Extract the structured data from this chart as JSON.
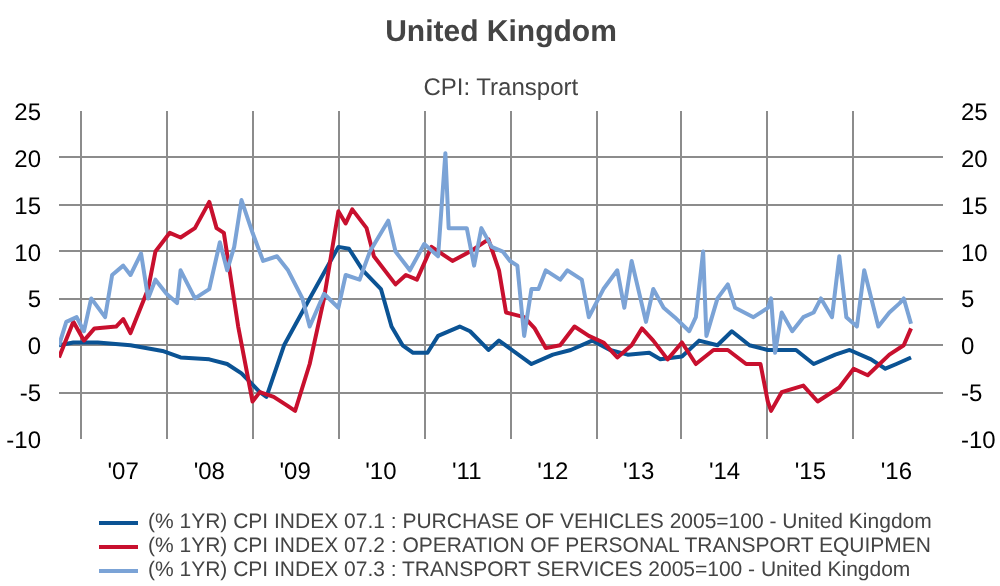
{
  "chart_data": {
    "type": "line",
    "title": "United Kingdom",
    "subtitle": "CPI: Transport",
    "xlim": [
      "2006-10-01",
      "2017-01-15"
    ],
    "xticks": [
      {
        "value": "2007-01-01",
        "label": null
      },
      {
        "value": "2008-01-01",
        "label": null
      },
      {
        "value": "2009-01-01",
        "label": null
      },
      {
        "value": "2010-01-01",
        "label": null
      },
      {
        "value": "2011-01-01",
        "label": null
      },
      {
        "value": "2012-01-01",
        "label": null
      },
      {
        "value": "2013-01-01",
        "label": null
      },
      {
        "value": "2014-01-01",
        "label": null
      },
      {
        "value": "2015-01-01",
        "label": null
      },
      {
        "value": "2016-01-01",
        "label": null
      },
      {
        "value": "2007-07-01",
        "label": "'07"
      },
      {
        "value": "2008-07-01",
        "label": "'08"
      },
      {
        "value": "2009-07-01",
        "label": "'09"
      },
      {
        "value": "2010-07-01",
        "label": "'10"
      },
      {
        "value": "2011-07-01",
        "label": "'11"
      },
      {
        "value": "2012-07-01",
        "label": "'12"
      },
      {
        "value": "2013-07-01",
        "label": "'13"
      },
      {
        "value": "2014-07-01",
        "label": "'14"
      },
      {
        "value": "2015-07-01",
        "label": "'15"
      },
      {
        "value": "2016-07-01",
        "label": "'16"
      }
    ],
    "ylim": [
      -10,
      25
    ],
    "yticks": [
      -10,
      -5,
      0,
      5,
      10,
      15,
      20,
      25
    ],
    "y2lim": [
      -10,
      25
    ],
    "y2ticks": [
      -10,
      -5,
      0,
      5,
      10,
      15,
      20,
      25
    ],
    "grid": true,
    "legend": "bottom",
    "series": [
      {
        "name": "(% 1YR) CPI INDEX 07.1 : PURCHASE OF VEHICLES 2005=100 - United Kingdom",
        "color": "#0b5394",
        "x": [
          "2006-10-01",
          "2006-12-01",
          "2007-03-15",
          "2007-08-01",
          "2007-12-15",
          "2008-03-01",
          "2008-07-01",
          "2008-09-15",
          "2008-11-15",
          "2009-02-01",
          "2009-03-01",
          "2009-05-15",
          "2009-09-01",
          "2010-01-01",
          "2010-02-15",
          "2010-04-15",
          "2010-07-01",
          "2010-08-15",
          "2010-10-01",
          "2010-11-15",
          "2011-01-15",
          "2011-03-01",
          "2011-06-01",
          "2011-07-15",
          "2011-10-01",
          "2011-11-15",
          "2012-04-01",
          "2012-07-01",
          "2012-09-15",
          "2012-12-15",
          "2013-03-01",
          "2013-05-15",
          "2013-08-15",
          "2013-10-01",
          "2014-01-01",
          "2014-03-15",
          "2014-06-01",
          "2014-08-01",
          "2014-10-15",
          "2015-01-01",
          "2015-05-01",
          "2015-07-15",
          "2015-10-15",
          "2015-12-15",
          "2016-03-15",
          "2016-05-15",
          "2016-07-01",
          "2016-09-01"
        ],
        "values": [
          0,
          0.3,
          0.3,
          0,
          -0.6,
          -1.3,
          -1.5,
          -2,
          -3,
          -5,
          -5.5,
          0,
          5,
          10.5,
          10.3,
          8,
          6,
          2,
          0,
          -0.8,
          -0.8,
          1,
          2,
          1.5,
          -0.5,
          0.5,
          -2,
          -1,
          -0.5,
          0.5,
          -0.5,
          -1,
          -0.8,
          -1.5,
          -1.2,
          0.5,
          0,
          1.5,
          0,
          -0.5,
          -0.5,
          -2,
          -1,
          -0.5,
          -1.5,
          -2.5,
          -2,
          -1.3
        ]
      },
      {
        "name": "(% 1YR) CPI INDEX 07.2 : OPERATION OF PERSONAL TRANSPORT EQUIPMEN",
        "color": "#c8102e",
        "x": [
          "2006-10-01",
          "2006-12-01",
          "2007-01-15",
          "2007-03-01",
          "2007-06-01",
          "2007-07-01",
          "2007-08-01",
          "2007-10-15",
          "2007-11-15",
          "2008-01-15",
          "2008-03-01",
          "2008-05-01",
          "2008-07-01",
          "2008-08-01",
          "2008-09-01",
          "2008-11-01",
          "2009-01-01",
          "2009-02-01",
          "2009-04-01",
          "2009-06-01",
          "2009-07-01",
          "2009-09-01",
          "2009-11-01",
          "2010-01-01",
          "2010-02-01",
          "2010-03-01",
          "2010-05-01",
          "2010-06-01",
          "2010-09-01",
          "2010-10-15",
          "2010-12-01",
          "2011-02-01",
          "2011-05-01",
          "2011-07-15",
          "2011-10-01",
          "2011-11-15",
          "2011-12-15",
          "2012-03-01",
          "2012-04-15",
          "2012-06-01",
          "2012-08-01",
          "2012-10-01",
          "2012-12-01",
          "2013-02-01",
          "2013-04-01",
          "2013-06-01",
          "2013-07-15",
          "2013-09-01",
          "2013-11-01",
          "2014-01-01",
          "2014-03-01",
          "2014-05-15",
          "2014-07-15",
          "2014-10-01",
          "2014-12-01",
          "2015-01-01",
          "2015-01-15",
          "2015-03-01",
          "2015-06-01",
          "2015-08-01",
          "2015-11-01",
          "2016-01-01",
          "2016-03-01",
          "2016-06-01",
          "2016-08-01",
          "2016-09-01"
        ],
        "values": [
          -1.3,
          2.5,
          0.5,
          1.8,
          2,
          2.8,
          1.3,
          6,
          10,
          12,
          11.5,
          12.5,
          15.3,
          12.5,
          12,
          2,
          -6,
          -5,
          -5.5,
          -6.5,
          -7,
          -2,
          5,
          14.3,
          13,
          14.5,
          12.5,
          9.5,
          6.5,
          7.5,
          7,
          10.5,
          9,
          10,
          11.3,
          8,
          3.5,
          3,
          1.8,
          -0.3,
          0,
          2,
          1,
          0.3,
          -1.3,
          0,
          1.8,
          0.5,
          -1.5,
          0.3,
          -2,
          -0.5,
          -0.5,
          -2,
          -2,
          -6,
          -7,
          -5,
          -4.3,
          -6,
          -4.5,
          -2.5,
          -3.2,
          -1,
          0,
          1.8
        ]
      },
      {
        "name": "(% 1YR) CPI INDEX 07.3 : TRANSPORT SERVICES 2005=100 - United Kingdom",
        "color": "#7ba3d6",
        "x": [
          "2006-10-01",
          "2006-11-01",
          "2006-12-15",
          "2007-01-15",
          "2007-02-15",
          "2007-04-15",
          "2007-05-15",
          "2007-07-01",
          "2007-08-01",
          "2007-09-15",
          "2007-10-15",
          "2007-11-15",
          "2008-01-01",
          "2008-02-15",
          "2008-03-01",
          "2008-05-01",
          "2008-07-01",
          "2008-08-15",
          "2008-09-15",
          "2008-10-15",
          "2008-11-15",
          "2009-01-01",
          "2009-02-15",
          "2009-04-15",
          "2009-06-01",
          "2009-08-01",
          "2009-09-01",
          "2009-11-01",
          "2010-01-01",
          "2010-02-01",
          "2010-04-01",
          "2010-05-15",
          "2010-08-01",
          "2010-09-01",
          "2010-11-01",
          "2011-01-01",
          "2011-03-01",
          "2011-04-01",
          "2011-04-15",
          "2011-07-01",
          "2011-08-01",
          "2011-09-01",
          "2011-10-15",
          "2011-12-01",
          "2012-01-01",
          "2012-02-01",
          "2012-03-01",
          "2012-04-01",
          "2012-05-01",
          "2012-06-01",
          "2012-08-01",
          "2012-09-01",
          "2012-11-01",
          "2012-12-01",
          "2013-02-01",
          "2013-04-01",
          "2013-05-01",
          "2013-06-01",
          "2013-08-01",
          "2013-09-01",
          "2013-10-15",
          "2013-12-01",
          "2014-02-01",
          "2014-03-01",
          "2014-04-01",
          "2014-04-15",
          "2014-06-01",
          "2014-07-15",
          "2014-08-15",
          "2014-11-01",
          "2015-01-01",
          "2015-01-15",
          "2015-02-01",
          "2015-03-01",
          "2015-04-15",
          "2015-06-01",
          "2015-07-15",
          "2015-08-15",
          "2015-10-01",
          "2015-11-01",
          "2015-12-01",
          "2016-01-15",
          "2016-02-15",
          "2016-04-15",
          "2016-06-01",
          "2016-07-15",
          "2016-08-01",
          "2016-09-01"
        ],
        "values": [
          0,
          2.5,
          3,
          1.5,
          5,
          3,
          7.5,
          8.5,
          7.5,
          9.8,
          5,
          7,
          5.5,
          4.5,
          8,
          5,
          6,
          11,
          8,
          10.5,
          15.5,
          12,
          9,
          9.5,
          8,
          5,
          2,
          5.5,
          4,
          7.5,
          7,
          10,
          13.3,
          10,
          8,
          10.8,
          9.5,
          20.5,
          12.5,
          12.5,
          8.5,
          12.5,
          10.5,
          10,
          9,
          8.5,
          1,
          6,
          6,
          8,
          7,
          8,
          7,
          3,
          6,
          8,
          4,
          9,
          2.5,
          6,
          4,
          3,
          1.5,
          3,
          10,
          1,
          5,
          6.5,
          4,
          3,
          4,
          5,
          -0.8,
          3.5,
          1.5,
          3,
          3.5,
          5,
          3,
          9.5,
          3,
          2,
          8,
          2,
          3.5,
          4.5,
          5,
          2.3
        ]
      }
    ]
  }
}
